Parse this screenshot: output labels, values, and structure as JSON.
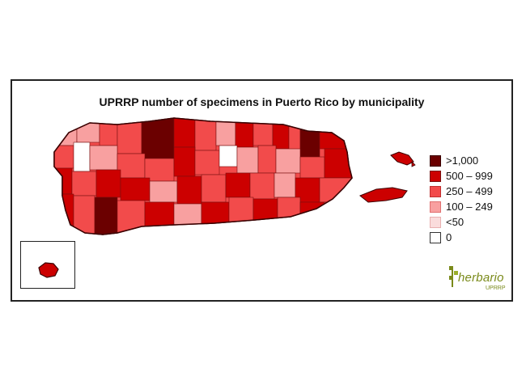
{
  "title": "UPRRP number of specimens in Puerto Rico by municipality",
  "colors": {
    "c1000": "#6b0000",
    "c500": "#cc0000",
    "c250": "#f24b4b",
    "c100": "#f8a0a0",
    "c50": "#fadcdc",
    "c0": "#ffffff",
    "outline": "#3a0000",
    "logo": "#7a8a1a"
  },
  "legend": {
    "items": [
      {
        "label": ">1,000",
        "color": "#6b0000"
      },
      {
        "label": "500 – 999",
        "color": "#cc0000"
      },
      {
        "label": "250 – 499",
        "color": "#f24b4b"
      },
      {
        "label": "100 – 249",
        "color": "#f8a0a0"
      },
      {
        "label": "<50",
        "color": "#fadcdc"
      },
      {
        "label": "0",
        "color": "#ffffff"
      }
    ]
  },
  "logo": {
    "word": "herbario",
    "sub": "UPRRP"
  }
}
